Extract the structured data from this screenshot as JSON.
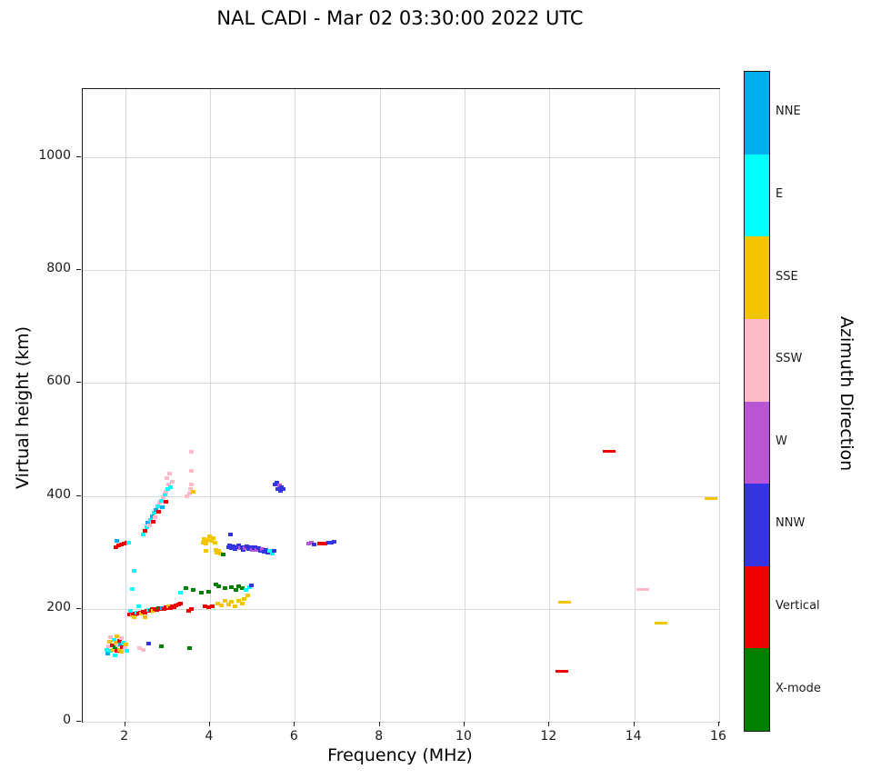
{
  "chart_data": {
    "type": "scatter",
    "title": "NAL CADI - Mar 02 03:30:00 2022 UTC",
    "xlabel": "Frequency (MHz)",
    "ylabel": "Virtual height (km)",
    "xlim": [
      1.0,
      16.0
    ],
    "ylim": [
      0,
      1121
    ],
    "x_ticks": [
      2,
      4,
      6,
      8,
      10,
      12,
      14,
      16
    ],
    "y_ticks": [
      0,
      200,
      400,
      600,
      800,
      1000
    ],
    "grid": true,
    "marker": "square",
    "colorbar": {
      "label": "Azimuth Direction",
      "categories": [
        {
          "key": "NNE",
          "label": "NNE",
          "color": "#00AEEF"
        },
        {
          "key": "E",
          "label": "E",
          "color": "#00FFFF"
        },
        {
          "key": "SSE",
          "label": "SSE",
          "color": "#F2C500"
        },
        {
          "key": "SSW",
          "label": "SSW",
          "color": "#FFB9C8"
        },
        {
          "key": "W",
          "label": "W",
          "color": "#BA55D3"
        },
        {
          "key": "NNW",
          "label": "NNW",
          "color": "#3434E0"
        },
        {
          "key": "V",
          "label": "Vertical",
          "color": "#EE0000"
        },
        {
          "key": "X",
          "label": "X-mode",
          "color": "#008000"
        }
      ]
    },
    "points": [
      [
        1.55,
        128,
        "E"
      ],
      [
        1.58,
        120,
        "NNE"
      ],
      [
        1.6,
        133,
        "SSW"
      ],
      [
        1.62,
        142,
        "SSE"
      ],
      [
        1.65,
        125,
        "E"
      ],
      [
        1.65,
        150,
        "SSW"
      ],
      [
        1.68,
        136,
        "V"
      ],
      [
        1.7,
        128,
        "SSE"
      ],
      [
        1.72,
        145,
        "E"
      ],
      [
        1.75,
        132,
        "X"
      ],
      [
        1.75,
        118,
        "E"
      ],
      [
        1.78,
        140,
        "SSE"
      ],
      [
        1.8,
        126,
        "V"
      ],
      [
        1.8,
        152,
        "SSE"
      ],
      [
        1.82,
        135,
        "SSW"
      ],
      [
        1.85,
        143,
        "V"
      ],
      [
        1.85,
        128,
        "SSE"
      ],
      [
        1.88,
        137,
        "NNE"
      ],
      [
        1.9,
        148,
        "SSW"
      ],
      [
        1.9,
        124,
        "SSE"
      ],
      [
        1.92,
        132,
        "V"
      ],
      [
        1.95,
        140,
        "E"
      ],
      [
        1.98,
        130,
        "SSW"
      ],
      [
        2.0,
        137,
        "SSE"
      ],
      [
        2.02,
        126,
        "E"
      ],
      [
        2.32,
        130,
        "SSW"
      ],
      [
        2.42,
        127,
        "SSW"
      ],
      [
        2.55,
        138,
        "NNW"
      ],
      [
        2.85,
        133,
        "X"
      ],
      [
        3.5,
        130,
        "X"
      ],
      [
        1.78,
        310,
        "V"
      ],
      [
        1.84,
        312,
        "V"
      ],
      [
        1.9,
        314,
        "V"
      ],
      [
        1.96,
        316,
        "V"
      ],
      [
        2.02,
        318,
        "V"
      ],
      [
        1.8,
        320,
        "NNE"
      ],
      [
        2.08,
        318,
        "E"
      ],
      [
        2.1,
        190,
        "V"
      ],
      [
        2.15,
        188,
        "SSE"
      ],
      [
        2.18,
        192,
        "V"
      ],
      [
        2.22,
        190,
        "V"
      ],
      [
        2.26,
        193,
        "E"
      ],
      [
        2.3,
        191,
        "V"
      ],
      [
        2.34,
        194,
        "V"
      ],
      [
        2.38,
        192,
        "SSE"
      ],
      [
        2.42,
        195,
        "V"
      ],
      [
        2.46,
        193,
        "V"
      ],
      [
        2.5,
        196,
        "V"
      ],
      [
        2.54,
        198,
        "E"
      ],
      [
        2.58,
        196,
        "V"
      ],
      [
        2.62,
        199,
        "V"
      ],
      [
        2.66,
        197,
        "SSE"
      ],
      [
        2.7,
        200,
        "V"
      ],
      [
        2.74,
        198,
        "V"
      ],
      [
        2.78,
        201,
        "X"
      ],
      [
        2.82,
        199,
        "V"
      ],
      [
        2.86,
        202,
        "NNE"
      ],
      [
        2.9,
        200,
        "V"
      ],
      [
        2.94,
        203,
        "V"
      ],
      [
        2.98,
        201,
        "V"
      ],
      [
        3.02,
        204,
        "SSE"
      ],
      [
        3.06,
        202,
        "V"
      ],
      [
        3.1,
        205,
        "V"
      ],
      [
        3.14,
        203,
        "V"
      ],
      [
        3.18,
        206,
        "V"
      ],
      [
        3.25,
        208,
        "V"
      ],
      [
        3.3,
        210,
        "V"
      ],
      [
        2.2,
        185,
        "SSE"
      ],
      [
        2.45,
        186,
        "SSE"
      ],
      [
        2.12,
        196,
        "E"
      ],
      [
        2.3,
        205,
        "E"
      ],
      [
        2.15,
        235,
        "E"
      ],
      [
        2.2,
        268,
        "E"
      ],
      [
        2.42,
        332,
        "E"
      ],
      [
        2.46,
        338,
        "V"
      ],
      [
        2.5,
        344,
        "E"
      ],
      [
        2.52,
        352,
        "NNE"
      ],
      [
        2.56,
        348,
        "SSW"
      ],
      [
        2.58,
        358,
        "E"
      ],
      [
        2.62,
        364,
        "NNE"
      ],
      [
        2.64,
        355,
        "V"
      ],
      [
        2.68,
        370,
        "E"
      ],
      [
        2.7,
        362,
        "SSW"
      ],
      [
        2.72,
        376,
        "NNE"
      ],
      [
        2.76,
        382,
        "E"
      ],
      [
        2.78,
        372,
        "V"
      ],
      [
        2.8,
        388,
        "SSW"
      ],
      [
        2.84,
        392,
        "E"
      ],
      [
        2.86,
        380,
        "NNE"
      ],
      [
        2.88,
        398,
        "SSW"
      ],
      [
        2.92,
        403,
        "E"
      ],
      [
        2.94,
        390,
        "V"
      ],
      [
        2.96,
        408,
        "SSW"
      ],
      [
        3.0,
        412,
        "E"
      ],
      [
        3.02,
        420,
        "SSW"
      ],
      [
        3.06,
        416,
        "E"
      ],
      [
        3.1,
        425,
        "SSW"
      ],
      [
        2.98,
        432,
        "SSW"
      ],
      [
        3.04,
        440,
        "SSW"
      ],
      [
        3.45,
        400,
        "SSW"
      ],
      [
        3.5,
        405,
        "SSW"
      ],
      [
        3.52,
        412,
        "SSW"
      ],
      [
        3.55,
        420,
        "SSW"
      ],
      [
        3.56,
        445,
        "SSW"
      ],
      [
        3.55,
        478,
        "SSW"
      ],
      [
        3.6,
        408,
        "SSE"
      ],
      [
        3.82,
        318,
        "SSE"
      ],
      [
        3.86,
        324,
        "SSE"
      ],
      [
        3.9,
        316,
        "SSE"
      ],
      [
        3.94,
        322,
        "SSE"
      ],
      [
        3.98,
        328,
        "SSE"
      ],
      [
        4.02,
        320,
        "SSE"
      ],
      [
        4.06,
        326,
        "SSE"
      ],
      [
        4.1,
        318,
        "SSE"
      ],
      [
        4.12,
        304,
        "SSE"
      ],
      [
        4.16,
        300,
        "SSE"
      ],
      [
        4.2,
        302,
        "SSE"
      ],
      [
        4.24,
        298,
        "SSE"
      ],
      [
        4.3,
        296,
        "X"
      ],
      [
        3.9,
        302,
        "SSE"
      ],
      [
        4.42,
        310,
        "NNW"
      ],
      [
        4.46,
        312,
        "NNW"
      ],
      [
        4.5,
        308,
        "NNW"
      ],
      [
        4.54,
        311,
        "NNW"
      ],
      [
        4.58,
        306,
        "NNW"
      ],
      [
        4.62,
        309,
        "NNW"
      ],
      [
        4.66,
        312,
        "NNW"
      ],
      [
        4.7,
        307,
        "W"
      ],
      [
        4.74,
        310,
        "NNW"
      ],
      [
        4.78,
        305,
        "NNW"
      ],
      [
        4.82,
        308,
        "W"
      ],
      [
        4.86,
        311,
        "NNW"
      ],
      [
        4.9,
        306,
        "NNW"
      ],
      [
        4.94,
        309,
        "NNW"
      ],
      [
        4.98,
        304,
        "W"
      ],
      [
        5.02,
        307,
        "NNW"
      ],
      [
        5.06,
        310,
        "NNW"
      ],
      [
        5.1,
        305,
        "W"
      ],
      [
        5.14,
        308,
        "NNW"
      ],
      [
        5.18,
        303,
        "NNW"
      ],
      [
        5.22,
        306,
        "W"
      ],
      [
        5.26,
        301,
        "NNW"
      ],
      [
        5.3,
        304,
        "NNW"
      ],
      [
        5.35,
        300,
        "NNW"
      ],
      [
        5.4,
        303,
        "E"
      ],
      [
        5.45,
        298,
        "E"
      ],
      [
        5.5,
        302,
        "NNW"
      ],
      [
        4.48,
        332,
        "NNW"
      ],
      [
        5.52,
        420,
        "NNW"
      ],
      [
        5.56,
        423,
        "NNW"
      ],
      [
        5.58,
        413,
        "NNW"
      ],
      [
        5.62,
        418,
        "W"
      ],
      [
        5.64,
        409,
        "NNW"
      ],
      [
        5.68,
        415,
        "NNW"
      ],
      [
        5.72,
        412,
        "NNW"
      ],
      [
        6.32,
        315,
        "W"
      ],
      [
        6.38,
        317,
        "W"
      ],
      [
        6.44,
        314,
        "NNW"
      ],
      [
        6.58,
        315,
        "V"
      ],
      [
        6.64,
        316,
        "V"
      ],
      [
        6.7,
        315,
        "V"
      ],
      [
        6.78,
        317,
        "NNW"
      ],
      [
        6.85,
        318,
        "NNW"
      ],
      [
        6.92,
        319,
        "NNW"
      ],
      [
        3.42,
        237,
        "X"
      ],
      [
        3.6,
        233,
        "X"
      ],
      [
        3.78,
        228,
        "X"
      ],
      [
        3.95,
        231,
        "X"
      ],
      [
        4.12,
        244,
        "X"
      ],
      [
        4.2,
        240,
        "X"
      ],
      [
        4.34,
        236,
        "X"
      ],
      [
        4.5,
        238,
        "X"
      ],
      [
        4.6,
        234,
        "X"
      ],
      [
        4.66,
        240,
        "X"
      ],
      [
        4.74,
        237,
        "X"
      ],
      [
        4.18,
        210,
        "SSE"
      ],
      [
        4.26,
        206,
        "SSE"
      ],
      [
        4.34,
        214,
        "SSE"
      ],
      [
        4.42,
        208,
        "SSE"
      ],
      [
        4.5,
        212,
        "SSE"
      ],
      [
        4.58,
        205,
        "SSE"
      ],
      [
        4.66,
        215,
        "SSE"
      ],
      [
        4.74,
        209,
        "SSE"
      ],
      [
        4.8,
        218,
        "SSE"
      ],
      [
        4.88,
        224,
        "SSE"
      ],
      [
        3.48,
        196,
        "V"
      ],
      [
        3.56,
        199,
        "V"
      ],
      [
        3.88,
        204,
        "V"
      ],
      [
        3.96,
        203,
        "V"
      ],
      [
        4.04,
        205,
        "V"
      ],
      [
        4.84,
        234,
        "E"
      ],
      [
        4.92,
        238,
        "E"
      ],
      [
        3.3,
        228,
        "E"
      ],
      [
        4.96,
        241,
        "NNW"
      ]
    ],
    "wide_points": [
      [
        12.3,
        90,
        "V"
      ],
      [
        12.35,
        213,
        "SSE"
      ],
      [
        13.4,
        480,
        "V"
      ],
      [
        14.2,
        235,
        "SSW"
      ],
      [
        14.62,
        175,
        "SSE"
      ],
      [
        15.8,
        396,
        "SSE"
      ]
    ]
  }
}
